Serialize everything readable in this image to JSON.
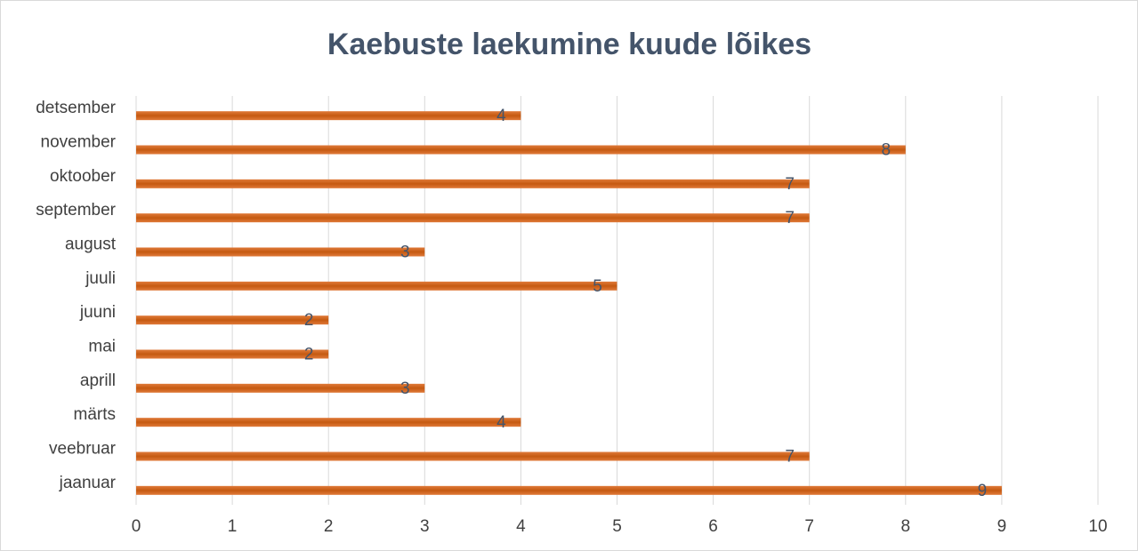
{
  "chart_data": {
    "type": "bar",
    "orientation": "horizontal",
    "title": "Kaebuste laekumine kuude lõikes",
    "categories": [
      "jaanuar",
      "veebruar",
      "märts",
      "aprill",
      "mai",
      "juuni",
      "juuli",
      "august",
      "september",
      "oktoober",
      "november",
      "detsember"
    ],
    "values": [
      9,
      7,
      4,
      3,
      2,
      2,
      5,
      3,
      7,
      7,
      8,
      4
    ],
    "color": "#c55a11",
    "xlim": [
      0,
      10
    ],
    "xticks": [
      0,
      1,
      2,
      3,
      4,
      5,
      6,
      7,
      8,
      9,
      10
    ],
    "grid": true
  }
}
